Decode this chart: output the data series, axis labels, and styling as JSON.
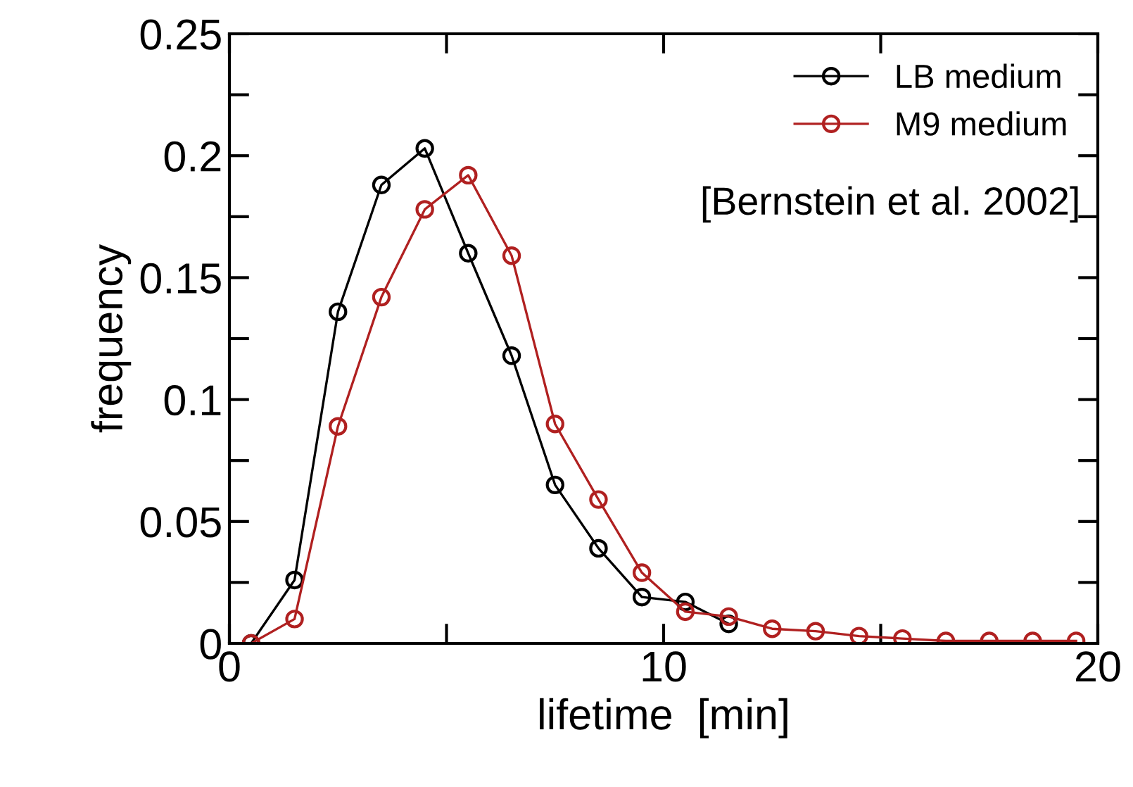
{
  "chart_data": {
    "type": "line",
    "xlabel": "lifetime  [min]",
    "ylabel": "frequency",
    "annotations": [
      "[Bernstein et al. 2002]"
    ],
    "x": [
      0.5,
      1.5,
      2.5,
      3.5,
      4.5,
      5.5,
      6.5,
      7.5,
      8.5,
      9.5,
      10.5,
      11.5,
      12.5,
      13.5,
      14.5,
      15.5,
      16.5,
      17.5,
      18.5,
      19.5
    ],
    "series": [
      {
        "name": "LB medium",
        "color": "#000000",
        "values": [
          0,
          0.026,
          0.136,
          0.188,
          0.203,
          0.16,
          0.118,
          0.065,
          0.039,
          0.019,
          0.017,
          0.008,
          null,
          null,
          null,
          null,
          null,
          null,
          null,
          null
        ]
      },
      {
        "name": "M9 medium",
        "color": "#b02020",
        "values": [
          0,
          0.01,
          0.089,
          0.142,
          0.178,
          0.192,
          0.159,
          0.09,
          0.059,
          0.029,
          0.013,
          0.011,
          0.006,
          0.005,
          0.003,
          0.002,
          0.001,
          0.001,
          0.001,
          0.001
        ]
      }
    ],
    "xlim": [
      0,
      20
    ],
    "ylim": [
      0,
      0.25
    ],
    "xticks": [
      0,
      {
        "value": 5,
        "label": null
      },
      10,
      {
        "value": 15,
        "label": null
      },
      20
    ],
    "yticks": [
      0,
      {
        "value": 0.025,
        "label": null
      },
      0.05,
      {
        "value": 0.075,
        "label": null
      },
      0.1,
      {
        "value": 0.125,
        "label": null
      },
      0.15,
      {
        "value": 0.175,
        "label": null
      },
      0.2,
      {
        "value": 0.225,
        "label": null
      },
      0.25
    ],
    "grid": false,
    "legend": "top right",
    "marker": "circle",
    "line_style": "solid"
  }
}
